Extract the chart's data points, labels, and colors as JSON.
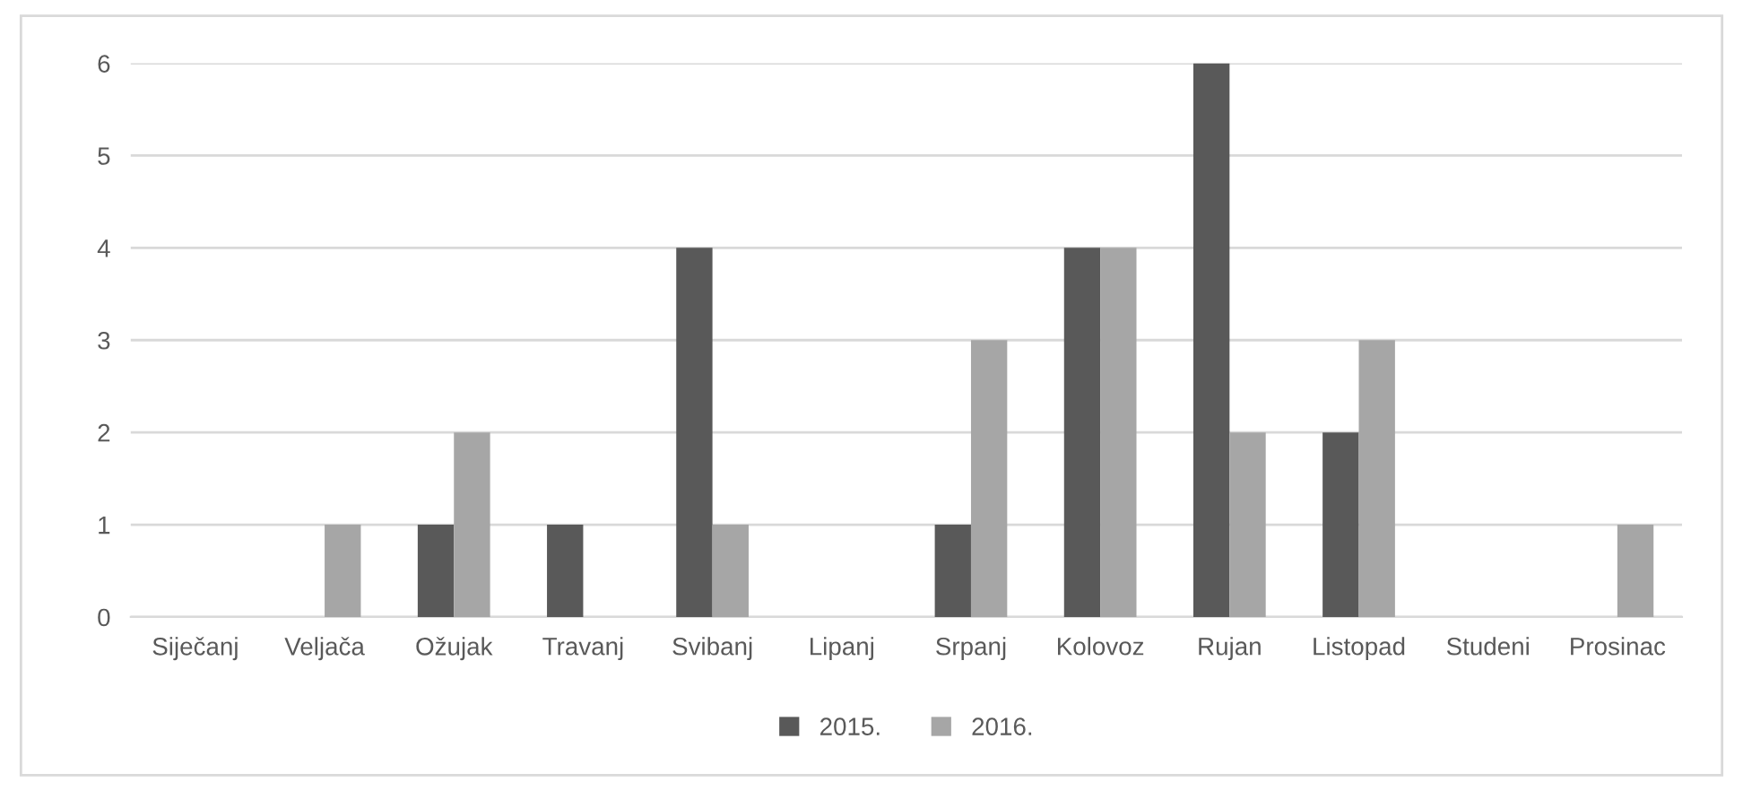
{
  "chart_data": {
    "type": "bar",
    "categories": [
      "Siječanj",
      "Veljača",
      "Ožujak",
      "Travanj",
      "Svibanj",
      "Lipanj",
      "Srpanj",
      "Kolovoz",
      "Rujan",
      "Listopad",
      "Studeni",
      "Prosinac"
    ],
    "series": [
      {
        "name": "2015.",
        "color": "#595959",
        "values": [
          0,
          0,
          1,
          1,
          4,
          0,
          1,
          4,
          6,
          2,
          0,
          0
        ]
      },
      {
        "name": "2016.",
        "color": "#a6a6a6",
        "values": [
          0,
          1,
          2,
          0,
          1,
          0,
          3,
          4,
          2,
          3,
          0,
          1
        ]
      }
    ],
    "ylim": [
      0,
      6
    ],
    "yticks": [
      0,
      1,
      2,
      3,
      4,
      5,
      6
    ],
    "grid": "y",
    "legend": "bottom"
  }
}
